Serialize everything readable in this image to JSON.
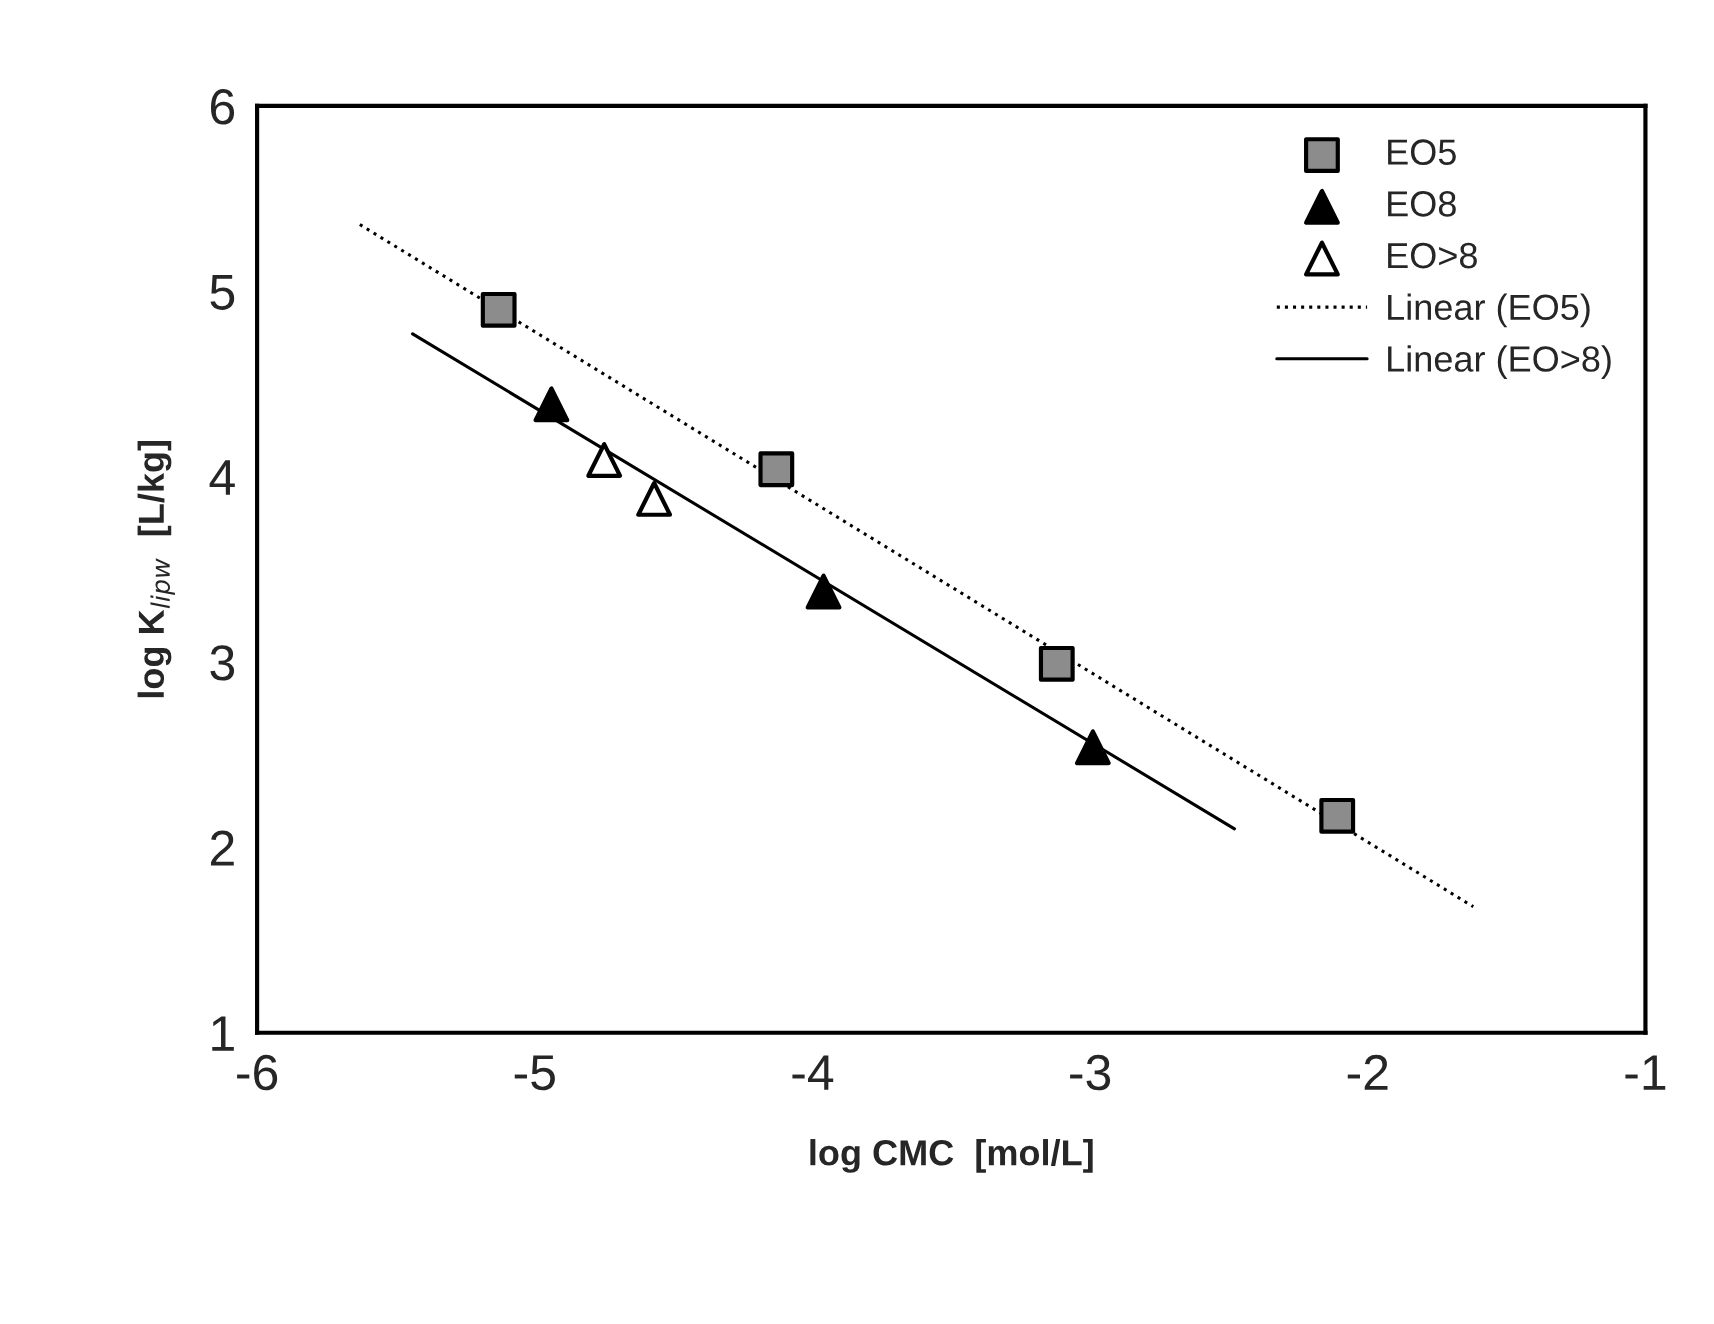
{
  "chart_data": {
    "type": "scatter",
    "xlabel": "log CMC  [mol/L]",
    "ylabel": "log K$_{lipw}$  [L/kg]",
    "xlim": [
      -6,
      -1
    ],
    "ylim": [
      1,
      6
    ],
    "xticks": [
      -6,
      -5,
      -4,
      -3,
      -2,
      -1
    ],
    "yticks": [
      1,
      2,
      3,
      4,
      5,
      6
    ],
    "grid": false,
    "legend": "top right",
    "series": [
      {
        "name": "EO5",
        "marker": "square",
        "color": "#8c8c8c",
        "x": [
          -5.13,
          -4.13,
          -3.12,
          -2.11
        ],
        "values": [
          4.9,
          4.04,
          2.99,
          2.17
        ]
      },
      {
        "name": "EO8",
        "marker": "triangle",
        "color": "#000000",
        "x": [
          -4.94,
          -3.96,
          -2.99
        ],
        "values": [
          4.39,
          3.38,
          2.54
        ]
      },
      {
        "name": "EO>8",
        "marker": "triangle",
        "color": "#ffffff",
        "x": [
          -4.75,
          -4.57
        ],
        "values": [
          4.09,
          3.88
        ]
      },
      {
        "name": "Linear (EO5)",
        "type": "line",
        "line_style": "dotted",
        "marker": "none",
        "color": "#000000",
        "x": [
          -5.63,
          -1.62
        ],
        "values": [
          5.36,
          1.68
        ]
      },
      {
        "name": "Linear (EO>8)",
        "type": "line",
        "line_style": "solid",
        "marker": "none",
        "color": "#000000",
        "x": [
          -5.44,
          -2.48
        ],
        "values": [
          4.77,
          2.1
        ]
      }
    ]
  }
}
